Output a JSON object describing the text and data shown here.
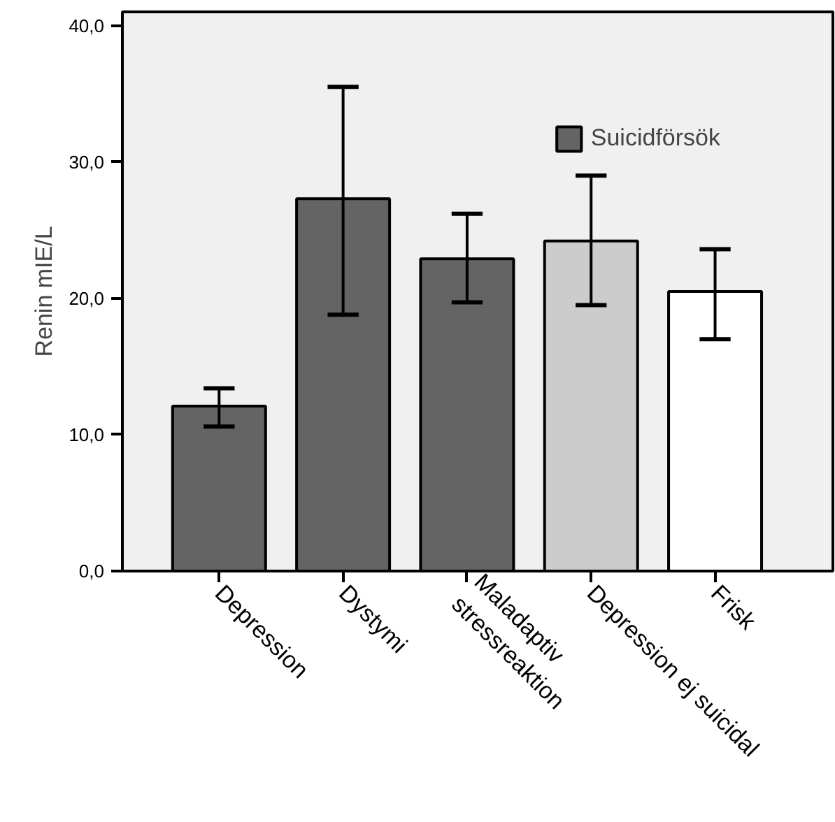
{
  "chart_data": {
    "type": "bar",
    "ylabel": "Renin mIE/L",
    "categories": [
      "Depression",
      "Dystymi",
      "Maladaptiv\nstressreaktion",
      "Depression ej suicidal",
      "Frisk"
    ],
    "series": [
      {
        "name": "Suicidförsök",
        "colors": [
          "#646464",
          "#646464",
          "#646464",
          "#cccccc",
          "#ffffff"
        ],
        "values": [
          12.1,
          27.3,
          22.9,
          24.2,
          20.5
        ],
        "errors": [
          [
            10.6,
            13.4
          ],
          [
            18.8,
            35.5
          ],
          [
            19.7,
            26.2
          ],
          [
            19.5,
            29.0
          ],
          [
            17.0,
            23.6
          ]
        ]
      }
    ],
    "ylim": [
      0,
      41
    ],
    "yticks": [
      {
        "value": 0,
        "label": "0,0"
      },
      {
        "value": 10,
        "label": "10,0"
      },
      {
        "value": 20,
        "label": "20,0"
      },
      {
        "value": 30,
        "label": "30,0"
      },
      {
        "value": 40,
        "label": "40,0"
      }
    ],
    "grid": false,
    "legend": "top right"
  }
}
